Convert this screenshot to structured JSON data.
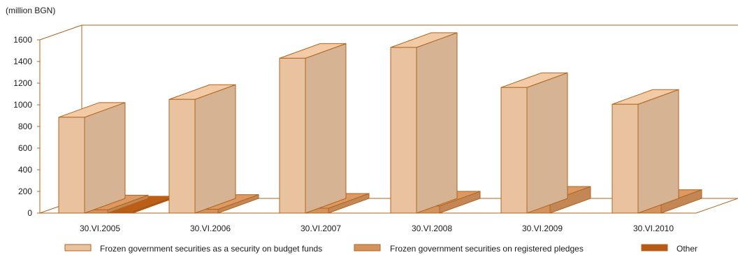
{
  "chart_data": {
    "type": "bar",
    "unit_label": "(million BGN)",
    "categories": [
      "30.VI.2005",
      "30.VI.2006",
      "30.VI.2007",
      "30.VI.2008",
      "30.VI.2009",
      "30.VI.2010"
    ],
    "y_ticks": [
      "0",
      "200",
      "400",
      "600",
      "800",
      "1000",
      "1200",
      "1400",
      "1600"
    ],
    "ylim": [
      0,
      1600
    ],
    "grid": false,
    "legend_position": "bottom",
    "series": [
      {
        "name": "Frozen government securities as a security on budget funds",
        "values": [
          885,
          1050,
          1430,
          1530,
          1160,
          1005
        ],
        "color": "#e9c3a0"
      },
      {
        "name": "Frozen government securities on registered pledges",
        "values": [
          30,
          35,
          45,
          65,
          110,
          80
        ],
        "color": "#d4935e"
      },
      {
        "name": "Other",
        "values": [
          20,
          0,
          0,
          0,
          0,
          0
        ],
        "color": "#b65a15"
      }
    ],
    "frame_color": "#b0641e"
  }
}
